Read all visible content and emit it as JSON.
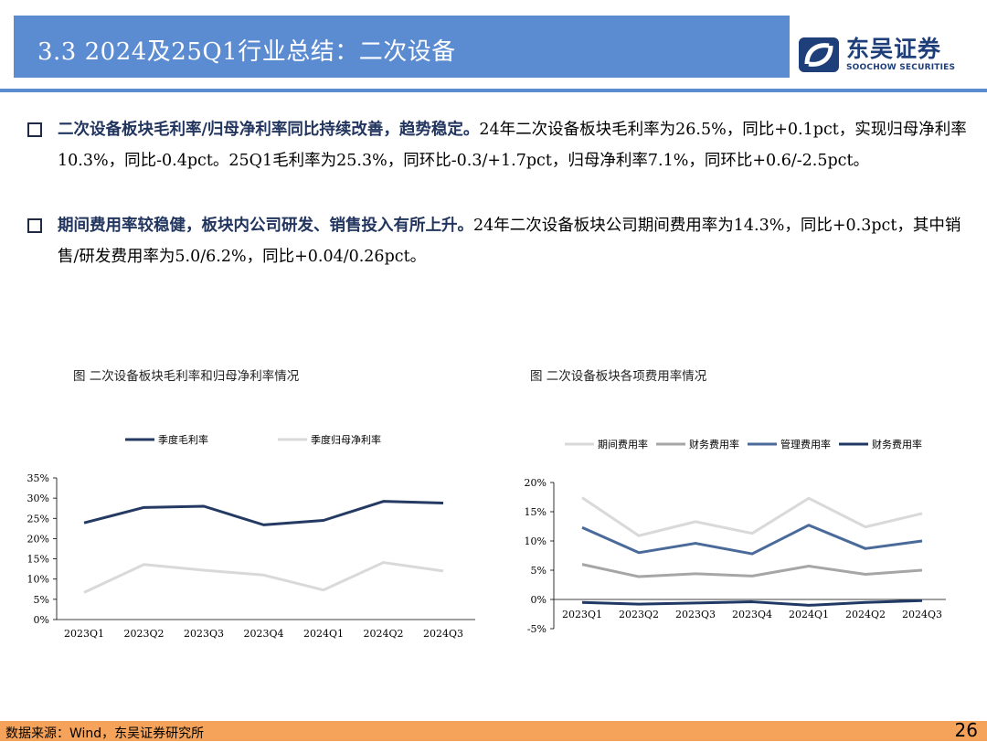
{
  "header": {
    "title": "3.3 2024及25Q1行业总结：二次设备",
    "logo_cn": "东吴证券",
    "logo_en": "SOOCHOW SECURITIES"
  },
  "bullets": [
    {
      "highlight": "二次设备板块毛利率/归母净利率同比持续改善，趋势稳定。",
      "body": "24年二次设备板块毛利率为26.5%，同比+0.1pct，实现归母净利率10.3%，同比-0.4pct。25Q1毛利率为25.3%，同环比-0.3/+1.7pct，归母净利率7.1%，同环比+0.6/-2.5pct。"
    },
    {
      "highlight": "期间费用率较稳健，板块内公司研发、销售投入有所上升。",
      "body": "24年二次设备板块公司期间费用率为14.3%，同比+0.3pct，其中销售/研发费用率为5.0/6.2%，同比+0.04/0.26pct。"
    }
  ],
  "chart_data": [
    {
      "type": "line",
      "caption": "图  二次设备板块毛利率和归母净利率情况",
      "categories": [
        "2023Q1",
        "2023Q2",
        "2023Q3",
        "2023Q4",
        "2024Q1",
        "2024Q2",
        "2024Q3"
      ],
      "y_ticks": [
        "35%",
        "30%",
        "25%",
        "20%",
        "15%",
        "10%",
        "5%",
        "0%"
      ],
      "ylim": [
        0,
        35
      ],
      "legend_position": "top",
      "grid": false,
      "series": [
        {
          "name": "季度毛利率",
          "color": "#243a63",
          "values": [
            23.9,
            27.7,
            28.0,
            23.4,
            24.5,
            29.2,
            28.8
          ]
        },
        {
          "name": "季度归母净利率",
          "color": "#d9d9d9",
          "values": [
            6.7,
            13.6,
            12.2,
            11.0,
            7.3,
            14.1,
            12.0
          ]
        }
      ]
    },
    {
      "type": "line",
      "caption": "图  二次设备板块各项费用率情况",
      "categories": [
        "2023Q1",
        "2023Q2",
        "2023Q3",
        "2023Q4",
        "2024Q1",
        "2024Q2",
        "2024Q3"
      ],
      "y_ticks": [
        "20%",
        "15%",
        "10%",
        "5%",
        "0%",
        "-5%"
      ],
      "ylim": [
        -5,
        20
      ],
      "legend_position": "top",
      "grid": false,
      "series": [
        {
          "name": "期间费用率",
          "color": "#d9d9d9",
          "values": [
            17.4,
            10.9,
            13.3,
            11.3,
            17.3,
            12.4,
            14.7
          ]
        },
        {
          "name": "财务费用率",
          "color": "#a6a6a6",
          "values": [
            6.0,
            3.9,
            4.4,
            4.0,
            5.7,
            4.3,
            5.0
          ]
        },
        {
          "name": "管理费用率",
          "color": "#4a6a99",
          "values": [
            12.3,
            8.0,
            9.6,
            7.8,
            12.7,
            8.7,
            10.0
          ]
        },
        {
          "name": "财务费用率",
          "color": "#1f3864",
          "values": [
            -0.5,
            -0.8,
            -0.6,
            -0.4,
            -1.0,
            -0.5,
            -0.2
          ]
        }
      ]
    }
  ],
  "footer": {
    "source": "数据来源：Wind，东吴证券研究所",
    "page": "26"
  }
}
